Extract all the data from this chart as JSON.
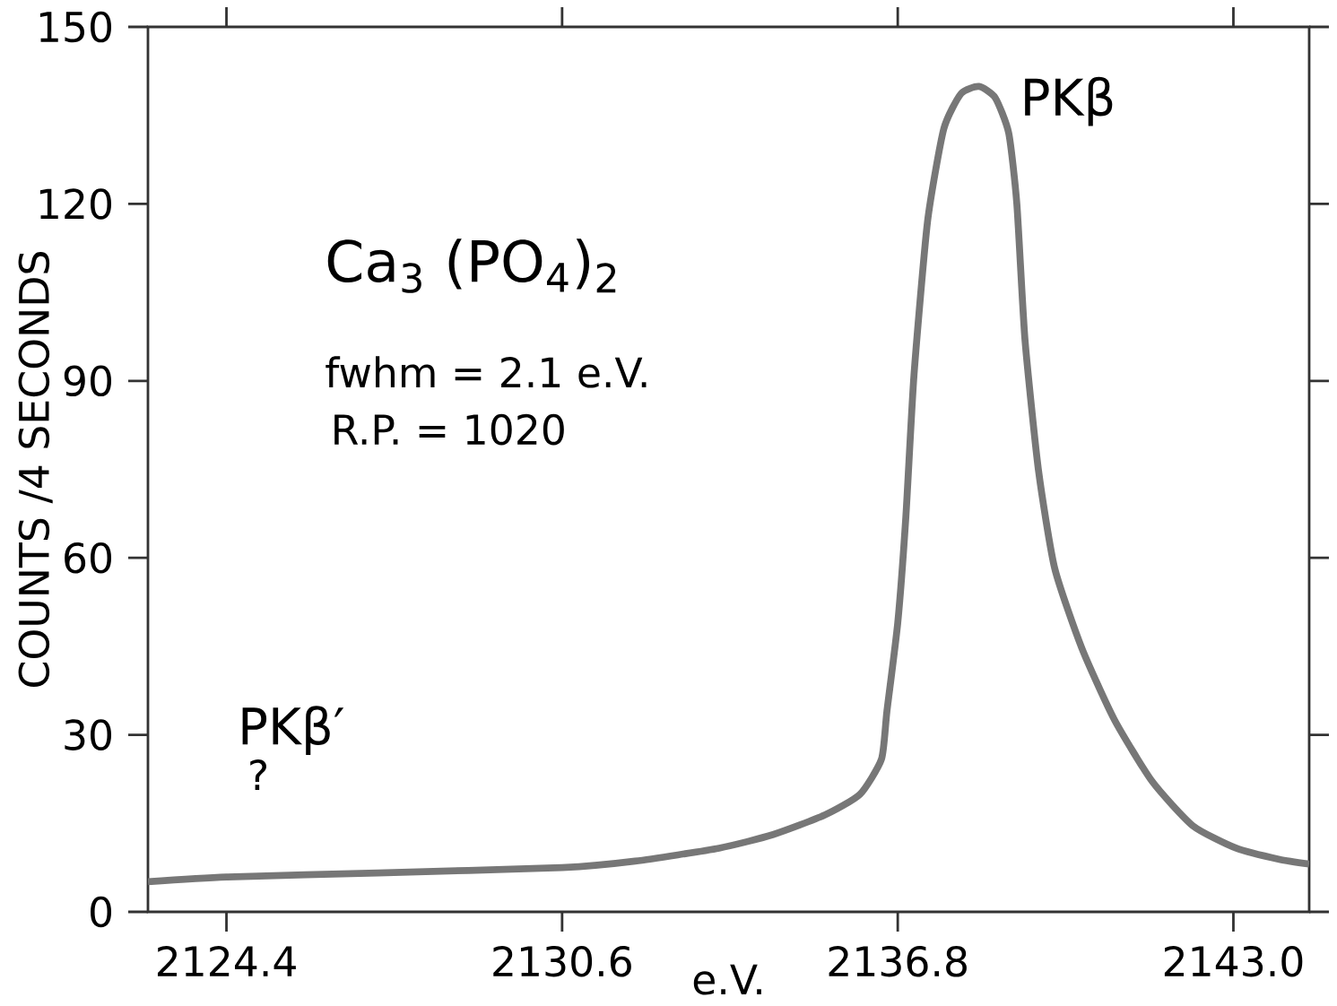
{
  "chart_data": {
    "type": "line",
    "xlabel": "e.V.",
    "ylabel": "COUNTS /4 SECONDS",
    "x": [
      2122.95,
      2124.4,
      2127.2,
      2130.6,
      2131.95,
      2133.5,
      2134.5,
      2135.45,
      2136.1,
      2136.5,
      2136.6,
      2136.8,
      2136.95,
      2137.1,
      2137.35,
      2137.65,
      2137.97,
      2138.3,
      2138.6,
      2138.85,
      2139.0,
      2139.15,
      2139.4,
      2139.7,
      2140.2,
      2140.8,
      2141.5,
      2142.25,
      2143.05,
      2143.85,
      2144.4
    ],
    "series": [
      {
        "color": "#777777",
        "values": [
          5.1,
          5.9,
          6.6,
          7.5,
          8.6,
          10.8,
          13.1,
          16.4,
          19.9,
          25.9,
          34,
          49,
          67,
          91,
          117,
          132.7,
          138.7,
          139.9,
          138,
          132,
          120,
          97,
          74.8,
          58.2,
          44.7,
          32.6,
          22.1,
          14.6,
          10.8,
          8.9,
          8.1
        ]
      }
    ],
    "xlim": [
      2122.95,
      2144.4
    ],
    "ylim": [
      0,
      150
    ],
    "xticks": [
      2124.4,
      2130.6,
      2136.8,
      {
        "value": 2143.0,
        "label": "2143.0"
      }
    ],
    "yticks": [
      0,
      30,
      60,
      90,
      120,
      150
    ],
    "marker": "none",
    "line_style": "solid",
    "annotations": [
      {
        "text": "PKβ",
        "x": 2138.3,
        "y": 139.9
      },
      "Ca$_{3}$ (PO$_{4}$)$_{2}$",
      "fwhm = 2.1 e.V.",
      "R.P. = 1020",
      "PKβ′",
      "?"
    ]
  }
}
